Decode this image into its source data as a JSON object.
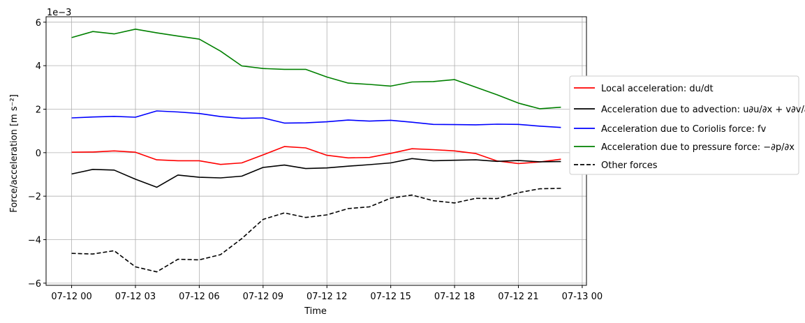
{
  "chart_data": {
    "type": "line",
    "xlabel": "Time",
    "ylabel": "Force/acceleration [m s⁻²]",
    "offset_text": "1e−3",
    "y_multiplier": 0.001,
    "ylim": [
      -6.1,
      6.25
    ],
    "xlim": [
      "07-12 00",
      "07-13 00"
    ],
    "grid": true,
    "legend_placement": "right-outside",
    "xticks": [
      "07-12 00",
      "07-12 03",
      "07-12 06",
      "07-12 09",
      "07-12 12",
      "07-12 15",
      "07-12 18",
      "07-12 21",
      "07-13 00"
    ],
    "xticks_hours": [
      0,
      3,
      6,
      9,
      12,
      15,
      18,
      21,
      24
    ],
    "yticks": [
      -6,
      -4,
      -2,
      0,
      2,
      4,
      6
    ],
    "ytick_labels": [
      "−6",
      "−4",
      "−2",
      "0",
      "2",
      "4",
      "6"
    ],
    "x_hours": [
      0,
      1,
      2,
      3,
      4,
      5,
      6,
      7,
      8,
      9,
      10,
      11,
      12,
      13,
      14,
      15,
      16,
      17,
      18,
      19,
      20,
      21,
      22,
      23
    ],
    "series": [
      {
        "name": "Local acceleration: du/dt",
        "color": "#ff0000",
        "dash": "solid",
        "values": [
          0.02,
          0.03,
          0.08,
          0.02,
          -0.33,
          -0.37,
          -0.37,
          -0.54,
          -0.47,
          -0.1,
          0.28,
          0.22,
          -0.12,
          -0.24,
          -0.22,
          -0.03,
          0.18,
          0.14,
          0.08,
          -0.04,
          -0.38,
          -0.5,
          -0.43,
          -0.3
        ]
      },
      {
        "name": "Acceleration due to advection: u∂u/∂x + v∂v/∂y",
        "color": "#000000",
        "dash": "solid",
        "values": [
          -0.98,
          -0.77,
          -0.8,
          -1.22,
          -1.59,
          -1.03,
          -1.13,
          -1.16,
          -1.08,
          -0.68,
          -0.57,
          -0.73,
          -0.7,
          -0.62,
          -0.55,
          -0.47,
          -0.27,
          -0.37,
          -0.35,
          -0.33,
          -0.4,
          -0.36,
          -0.42,
          -0.41
        ]
      },
      {
        "name": "Acceleration due to Coriolis force: fv",
        "color": "#0000ff",
        "dash": "solid",
        "values": [
          1.6,
          1.64,
          1.67,
          1.63,
          1.92,
          1.87,
          1.8,
          1.66,
          1.58,
          1.6,
          1.36,
          1.37,
          1.42,
          1.5,
          1.45,
          1.49,
          1.4,
          1.3,
          1.29,
          1.28,
          1.31,
          1.3,
          1.22,
          1.16
        ]
      },
      {
        "name": "Acceleration due to pressure force: −∂p/∂x",
        "color": "#008000",
        "dash": "solid",
        "values": [
          5.29,
          5.57,
          5.46,
          5.68,
          5.51,
          5.36,
          5.22,
          4.67,
          3.99,
          3.87,
          3.83,
          3.83,
          3.48,
          3.2,
          3.14,
          3.06,
          3.25,
          3.27,
          3.36,
          3.01,
          2.66,
          2.28,
          2.02,
          2.09
        ]
      },
      {
        "name": "Other forces",
        "color": "#000000",
        "dash": "dashed",
        "values": [
          -4.63,
          -4.66,
          -4.51,
          -5.25,
          -5.48,
          -4.9,
          -4.93,
          -4.69,
          -3.95,
          -3.07,
          -2.77,
          -2.98,
          -2.86,
          -2.57,
          -2.49,
          -2.09,
          -1.95,
          -2.21,
          -2.31,
          -2.1,
          -2.11,
          -1.84,
          -1.66,
          -1.64
        ]
      }
    ]
  }
}
